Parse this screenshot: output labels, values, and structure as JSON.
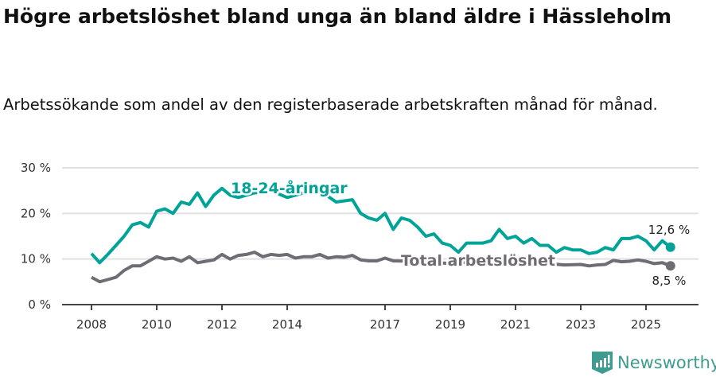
{
  "title": "Högre arbetslöshet bland unga än bland äldre i Hässleholm",
  "subtitle": "Arbetssökande som andel av den registerbaserade arbetskraften månad för månad.",
  "brand": "Newsworthy",
  "colors": {
    "youth": "#00a398",
    "total": "#6f6c73",
    "grid": "#e0e0e0",
    "brand": "#3d9c8f"
  },
  "chart_data": {
    "type": "line",
    "ylim": [
      0,
      30
    ],
    "xlim": [
      2007.6,
      2026.5
    ],
    "yticks": [
      0,
      10,
      20,
      30
    ],
    "ytick_labels": [
      "0 %",
      "10 %",
      "20 %",
      "30 %"
    ],
    "xticks": [
      2008,
      2010,
      2012,
      2014,
      2017,
      2019,
      2021,
      2023,
      2025
    ],
    "xtick_labels": [
      "2008",
      "2010",
      "2012",
      "2014",
      "2017",
      "2019",
      "2021",
      "2023",
      "2025"
    ],
    "grid": true,
    "series": [
      {
        "name": "18-24-åringar",
        "end_label": "12,6 %",
        "x": [
          2008,
          2008.25,
          2008.5,
          2008.75,
          2009,
          2009.25,
          2009.5,
          2009.75,
          2010,
          2010.25,
          2010.5,
          2010.75,
          2011,
          2011.25,
          2011.5,
          2011.75,
          2012,
          2012.25,
          2012.5,
          2013,
          2013.5,
          2014,
          2014.5,
          2015,
          2015.5,
          2016,
          2016.25,
          2016.5,
          2016.75,
          2017,
          2017.25,
          2017.5,
          2017.75,
          2018,
          2018.25,
          2018.5,
          2018.75,
          2019,
          2019.25,
          2019.5,
          2019.75,
          2020,
          2020.25,
          2020.5,
          2020.75,
          2021,
          2021.25,
          2021.5,
          2021.75,
          2022,
          2022.25,
          2022.5,
          2022.75,
          2023,
          2023.25,
          2023.5,
          2023.75,
          2024,
          2024.25,
          2024.5,
          2024.75,
          2025,
          2025.25,
          2025.5,
          2025.75
        ],
        "y": [
          11.2,
          9.2,
          11,
          13,
          15,
          17.5,
          18,
          17,
          20.5,
          21,
          20,
          22.5,
          22,
          24.5,
          21.5,
          24,
          25.5,
          24,
          23.5,
          24.5,
          25,
          23.5,
          24.5,
          25,
          22.5,
          23,
          20,
          19,
          18.5,
          20,
          16.5,
          19,
          18.5,
          17,
          15,
          15.5,
          13.5,
          13,
          11.5,
          13.5,
          13.5,
          13.5,
          14,
          16.5,
          14.5,
          15,
          13.5,
          14.5,
          13,
          13,
          11.5,
          12.5,
          12,
          12,
          11.2,
          11.5,
          12.5,
          12,
          14.5,
          14.5,
          15,
          14,
          12,
          14,
          12.6
        ]
      },
      {
        "name": "Total arbetslöshet",
        "end_label": "8,5 %",
        "x": [
          2008,
          2008.25,
          2008.5,
          2008.75,
          2009,
          2009.25,
          2009.5,
          2009.75,
          2010,
          2010.25,
          2010.5,
          2010.75,
          2011,
          2011.25,
          2011.5,
          2011.75,
          2012,
          2012.25,
          2012.5,
          2012.75,
          2013,
          2013.25,
          2013.5,
          2013.75,
          2014,
          2014.25,
          2014.5,
          2014.75,
          2015,
          2015.25,
          2015.5,
          2015.75,
          2016,
          2016.25,
          2016.5,
          2016.75,
          2017,
          2017.25,
          2018,
          2019,
          2020,
          2021,
          2022,
          2022.5,
          2023,
          2023.25,
          2023.5,
          2023.75,
          2024,
          2024.25,
          2024.5,
          2024.75,
          2025,
          2025.25,
          2025.5,
          2025.75
        ],
        "y": [
          6,
          5,
          5.5,
          6,
          7.5,
          8.5,
          8.5,
          9.5,
          10.5,
          10,
          10.2,
          9.5,
          10.5,
          9.2,
          9.5,
          9.8,
          11,
          10,
          10.8,
          11,
          11.5,
          10.5,
          11,
          10.8,
          11,
          10.2,
          10.5,
          10.5,
          11,
          10.2,
          10.5,
          10.4,
          10.8,
          9.8,
          9.6,
          9.6,
          10.2,
          9.6,
          9.5,
          9,
          9.5,
          9,
          9,
          8.7,
          8.8,
          8.5,
          8.7,
          8.8,
          9.7,
          9.4,
          9.5,
          9.8,
          9.5,
          9,
          9.2,
          8.5
        ]
      }
    ]
  }
}
